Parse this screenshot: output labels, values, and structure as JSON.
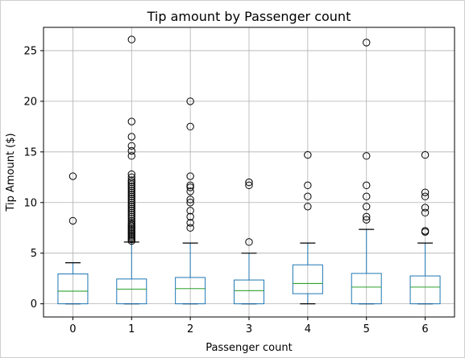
{
  "chart_data": {
    "type": "boxplot",
    "title": "Tip amount by Passenger count",
    "xlabel": "Passenger count",
    "ylabel": "Tip Amount ($)",
    "ylim": [
      -1.3,
      27.3
    ],
    "yticks": [
      0,
      5,
      10,
      15,
      20,
      25
    ],
    "grid": true,
    "colors": {
      "box": "#1f77b4",
      "median": "#2ca02c",
      "whisker": "#000000",
      "flier": "#000000",
      "grid": "#b0b0b0"
    },
    "categories": [
      "0",
      "1",
      "2",
      "3",
      "4",
      "5",
      "6"
    ],
    "boxes": [
      {
        "category": "0",
        "whislo": 0,
        "q1": 0,
        "med": 1.25,
        "q3": 2.95,
        "whishi": 4.05,
        "fliers": [
          8.2,
          12.6
        ]
      },
      {
        "category": "1",
        "whislo": 0,
        "q1": 0,
        "med": 1.45,
        "q3": 2.45,
        "whishi": 6.1,
        "fliers": [
          6.2,
          6.35,
          6.5,
          6.65,
          6.8,
          6.95,
          7.1,
          7.25,
          7.4,
          7.55,
          7.7,
          7.85,
          8.0,
          8.2,
          8.4,
          8.6,
          8.8,
          9.0,
          9.2,
          9.4,
          9.6,
          9.8,
          10.0,
          10.2,
          10.4,
          10.6,
          10.8,
          11.0,
          11.2,
          11.4,
          11.6,
          11.8,
          12.0,
          12.2,
          12.5,
          12.8,
          14.6,
          15.1,
          15.6,
          16.5,
          18.0,
          26.1
        ]
      },
      {
        "category": "2",
        "whislo": 0,
        "q1": 0,
        "med": 1.5,
        "q3": 2.6,
        "whishi": 6.0,
        "fliers": [
          7.5,
          8.0,
          8.6,
          9.2,
          10.0,
          10.3,
          11.1,
          11.5,
          11.7,
          12.6,
          17.5,
          20.0
        ]
      },
      {
        "category": "3",
        "whislo": 0,
        "q1": 0,
        "med": 1.3,
        "q3": 2.35,
        "whishi": 5.0,
        "fliers": [
          6.1,
          11.7,
          12.0
        ]
      },
      {
        "category": "4",
        "whislo": 0,
        "q1": 1.0,
        "med": 2.0,
        "q3": 3.85,
        "whishi": 6.0,
        "fliers": [
          9.6,
          10.6,
          11.7,
          14.7
        ]
      },
      {
        "category": "5",
        "whislo": 0,
        "q1": 0,
        "med": 1.65,
        "q3": 3.0,
        "whishi": 7.35,
        "fliers": [
          8.3,
          8.6,
          9.6,
          10.6,
          11.7,
          14.6,
          25.8
        ]
      },
      {
        "category": "6",
        "whislo": 0,
        "q1": 0,
        "med": 1.65,
        "q3": 2.75,
        "whishi": 6.0,
        "fliers": [
          7.1,
          7.2,
          9.0,
          9.5,
          10.6,
          11.0,
          14.7
        ]
      }
    ]
  }
}
